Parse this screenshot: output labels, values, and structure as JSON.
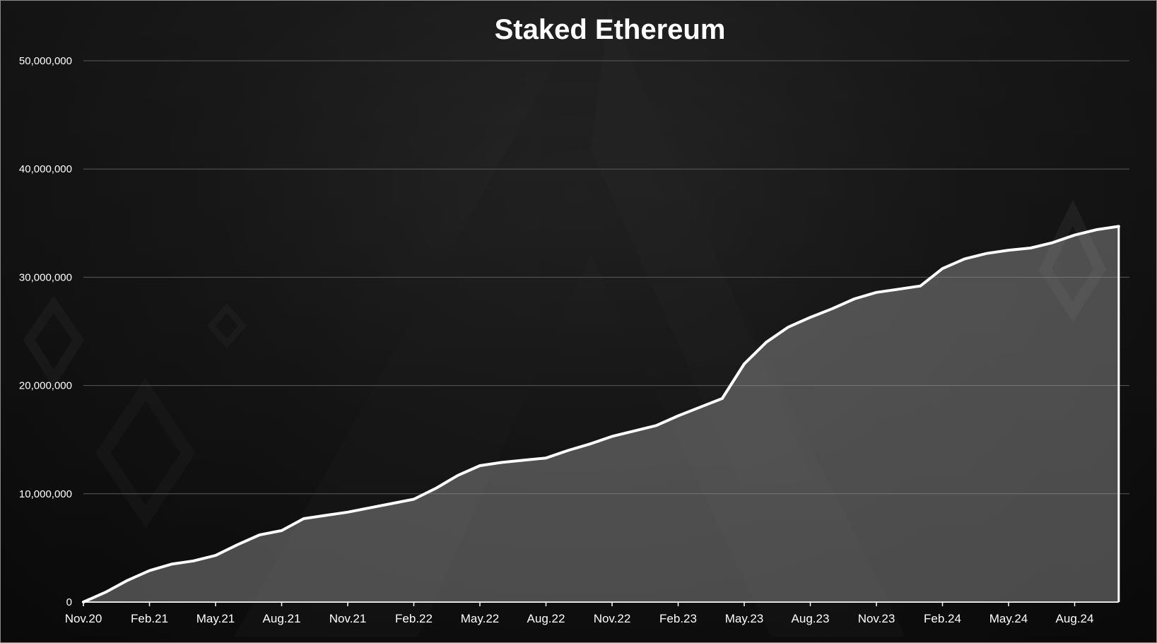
{
  "chart_data": {
    "type": "area",
    "title": "Staked Ethereum",
    "xlabel": "",
    "ylabel": "",
    "ylim": [
      0,
      50000000
    ],
    "yticks": [
      0,
      10000000,
      20000000,
      30000000,
      40000000,
      50000000
    ],
    "ytick_labels": [
      "0",
      "10,000,000",
      "20,000,000",
      "30,000,000",
      "40,000,000",
      "50,000,000"
    ],
    "xtick_labels": [
      "Nov.20",
      "Feb.21",
      "May.21",
      "Aug.21",
      "Nov.21",
      "Feb.22",
      "May.22",
      "Aug.22",
      "Nov.22",
      "Feb.23",
      "May.23",
      "Aug.23",
      "Nov.23",
      "Feb.24",
      "May.24",
      "Aug.24"
    ],
    "grid": true,
    "legend": "none",
    "colors": {
      "line": "#ffffff",
      "fill": "#9a9a9a",
      "grid": "#5a5a5a",
      "text": "#ffffff"
    },
    "series": [
      {
        "x": [
          "2020-11",
          "2020-12",
          "2021-01",
          "2021-02",
          "2021-03",
          "2021-04",
          "2021-05",
          "2021-06",
          "2021-07",
          "2021-08",
          "2021-09",
          "2021-10",
          "2021-11",
          "2021-12",
          "2022-01",
          "2022-02",
          "2022-03",
          "2022-04",
          "2022-05",
          "2022-06",
          "2022-07",
          "2022-08",
          "2022-09",
          "2022-10",
          "2022-11",
          "2022-12",
          "2023-01",
          "2023-02",
          "2023-03",
          "2023-04",
          "2023-05",
          "2023-06",
          "2023-07",
          "2023-08",
          "2023-09",
          "2023-10",
          "2023-11",
          "2023-12",
          "2024-01",
          "2024-02",
          "2024-03",
          "2024-04",
          "2024-05",
          "2024-06",
          "2024-07",
          "2024-08",
          "2024-09",
          "2024-10"
        ],
        "values": [
          0,
          900000,
          2000000,
          2900000,
          3500000,
          3800000,
          4300000,
          5300000,
          6200000,
          6600000,
          7700000,
          8000000,
          8300000,
          8700000,
          9100000,
          9500000,
          10500000,
          11700000,
          12600000,
          12900000,
          13100000,
          13300000,
          14000000,
          14600000,
          15300000,
          15800000,
          16300000,
          17200000,
          18000000,
          18800000,
          22000000,
          24000000,
          25400000,
          26300000,
          27100000,
          28000000,
          28600000,
          28900000,
          29200000,
          30800000,
          31700000,
          32200000,
          32500000,
          32700000,
          33200000,
          33900000,
          34400000,
          34700000
        ]
      }
    ]
  }
}
